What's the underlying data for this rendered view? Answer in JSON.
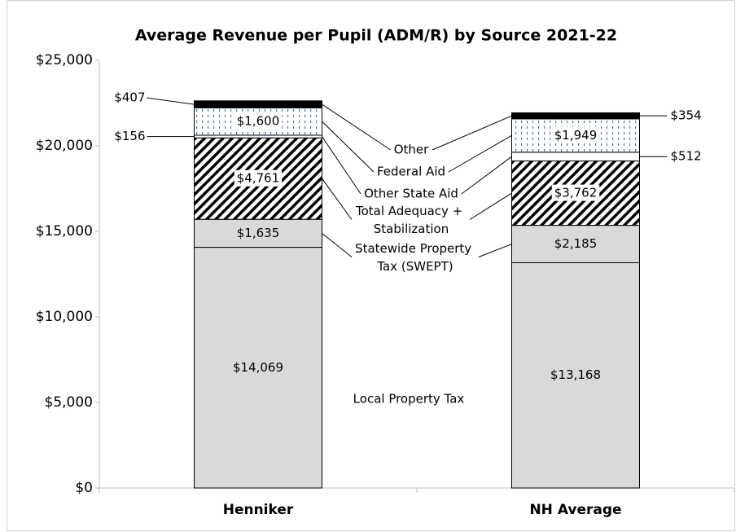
{
  "chart_data": {
    "type": "stacked_bar",
    "title": "Average Revenue per Pupil (ADM/R) by Source 2021-22",
    "categories": [
      "Henniker",
      "NH Average"
    ],
    "ylim": [
      0,
      25000
    ],
    "yticks": [
      {
        "value": 0,
        "label": "$0"
      },
      {
        "value": 5000,
        "label": "$5,000"
      },
      {
        "value": 10000,
        "label": "$10,000"
      },
      {
        "value": 15000,
        "label": "$15,000"
      },
      {
        "value": 20000,
        "label": "$20,000"
      },
      {
        "value": 25000,
        "label": "$25,000"
      }
    ],
    "grid": false,
    "series": [
      {
        "name": "Local Property Tax",
        "color": "#d9d9d9",
        "values": [
          14069,
          13168
        ],
        "value_labels": [
          "$14,069",
          "$13,168"
        ]
      },
      {
        "name": "Statewide Property Tax (SWEPT)",
        "color": "#d9d9d9",
        "values": [
          1635,
          2185
        ],
        "value_labels": [
          "$1,635",
          "$2,185"
        ]
      },
      {
        "name": "Total Adequacy + Stabilization",
        "color": "#000000",
        "pattern": "hatch",
        "values": [
          4761,
          3762
        ],
        "value_labels": [
          "$4,761",
          "$3,762"
        ]
      },
      {
        "name": "Other State Aid",
        "color": "#ffffff",
        "values": [
          156,
          512
        ],
        "value_labels": [
          "$156",
          "$512"
        ]
      },
      {
        "name": "Federal Aid",
        "color": "#4f74b0",
        "pattern": "dots",
        "values": [
          1600,
          1949
        ],
        "value_labels": [
          "$1,600",
          "$1,949"
        ]
      },
      {
        "name": "Other",
        "color": "#000000",
        "values": [
          407,
          354
        ],
        "value_labels": [
          "$407",
          "$354"
        ]
      }
    ]
  }
}
